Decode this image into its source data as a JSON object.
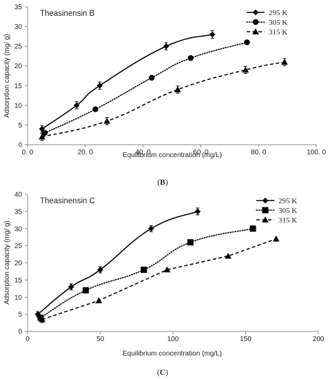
{
  "chart_data": [
    {
      "type": "line",
      "panel_label_prefix": "(",
      "panel_letter": "B",
      "panel_label_suffix": ")",
      "annotation": "Theasinensin  B",
      "xlabel": "Equilibrium concentration  (mg/L)",
      "ylabel": "Adsorption capacity (mg/ g)",
      "xlim": [
        0,
        100
      ],
      "ylim": [
        0,
        35
      ],
      "xticks": [
        "0. 0",
        "20. 0",
        "40. 0",
        "60. 0",
        "80. 0",
        "100. 0"
      ],
      "xtick_values": [
        0,
        20,
        40,
        60,
        80,
        100
      ],
      "yticks": [
        "0",
        "5",
        "10",
        "15",
        "20",
        "25",
        "30",
        "35"
      ],
      "ytick_values": [
        0,
        5,
        10,
        15,
        20,
        25,
        30,
        35
      ],
      "legend_position": "top-right",
      "series": [
        {
          "name": "295 K",
          "marker": "diamond",
          "dash": "solid",
          "fit": "smooth",
          "x": [
            5.0,
            17.0,
            25.0,
            48.0,
            64.0
          ],
          "y": [
            4.0,
            10.0,
            15.0,
            25.0,
            28.0
          ],
          "err": [
            0.8,
            0.9,
            0.9,
            0.9,
            1.0
          ]
        },
        {
          "name": "305 K",
          "marker": "circle",
          "dash": "dotted",
          "fit": "smooth",
          "x": [
            6.0,
            23.5,
            43.0,
            56.5,
            76.0
          ],
          "y": [
            3.0,
            9.0,
            17.0,
            22.0,
            26.0
          ],
          "err": [
            0.5,
            0.4,
            0.4,
            0.4,
            0.4
          ]
        },
        {
          "name": "315 K",
          "marker": "triangle",
          "dash": "dashed",
          "fit": "smooth",
          "x": [
            5.0,
            27.5,
            52.0,
            75.5,
            89.0
          ],
          "y": [
            2.0,
            6.0,
            14.0,
            19.0,
            21.0
          ],
          "err": [
            0.9,
            0.9,
            0.9,
            0.9,
            0.9
          ]
        }
      ]
    },
    {
      "type": "line",
      "panel_label_prefix": "(",
      "panel_letter": "C",
      "panel_label_suffix": ")",
      "annotation": "Theasinensin C",
      "xlabel": "Equilibrium concentration (mg/L)",
      "ylabel": "Adsorption capacity (mg/ g)",
      "xlim": [
        0,
        200
      ],
      "ylim": [
        0,
        40
      ],
      "xticks": [
        "0",
        "50",
        "100",
        "150",
        "200"
      ],
      "xtick_values": [
        0,
        50,
        100,
        150,
        200
      ],
      "yticks": [
        "0",
        "5",
        "10",
        "15",
        "20",
        "25",
        "30",
        "35",
        "40"
      ],
      "ytick_values": [
        0,
        5,
        10,
        15,
        20,
        25,
        30,
        35,
        40
      ],
      "legend_position": "top-right",
      "series": [
        {
          "name": "295 K",
          "marker": "diamond",
          "dash": "solid",
          "fit": "smooth",
          "x": [
            7.0,
            30.0,
            50.0,
            85.0,
            117.0
          ],
          "y": [
            5.0,
            13.0,
            18.0,
            30.0,
            35.0
          ],
          "err": [
            0.8,
            0.9,
            0.9,
            0.9,
            1.0
          ]
        },
        {
          "name": "305 K",
          "marker": "square",
          "dash": "dotted",
          "fit": "smooth",
          "x": [
            9.0,
            40.0,
            80.0,
            112.0,
            155.0
          ],
          "y": [
            4.0,
            12.0,
            18.0,
            26.0,
            30.0
          ],
          "err": [
            0.4,
            0.4,
            0.4,
            0.4,
            0.4
          ]
        },
        {
          "name": "315 K",
          "marker": "triangle",
          "dash": "dashed",
          "fit": "linear",
          "x": [
            10.0,
            49.0,
            96.0,
            138.0,
            171.0
          ],
          "y": [
            3.5,
            9.0,
            18.0,
            22.0,
            27.0
          ],
          "err": [
            0.9,
            0,
            0,
            0,
            0
          ]
        }
      ]
    }
  ]
}
